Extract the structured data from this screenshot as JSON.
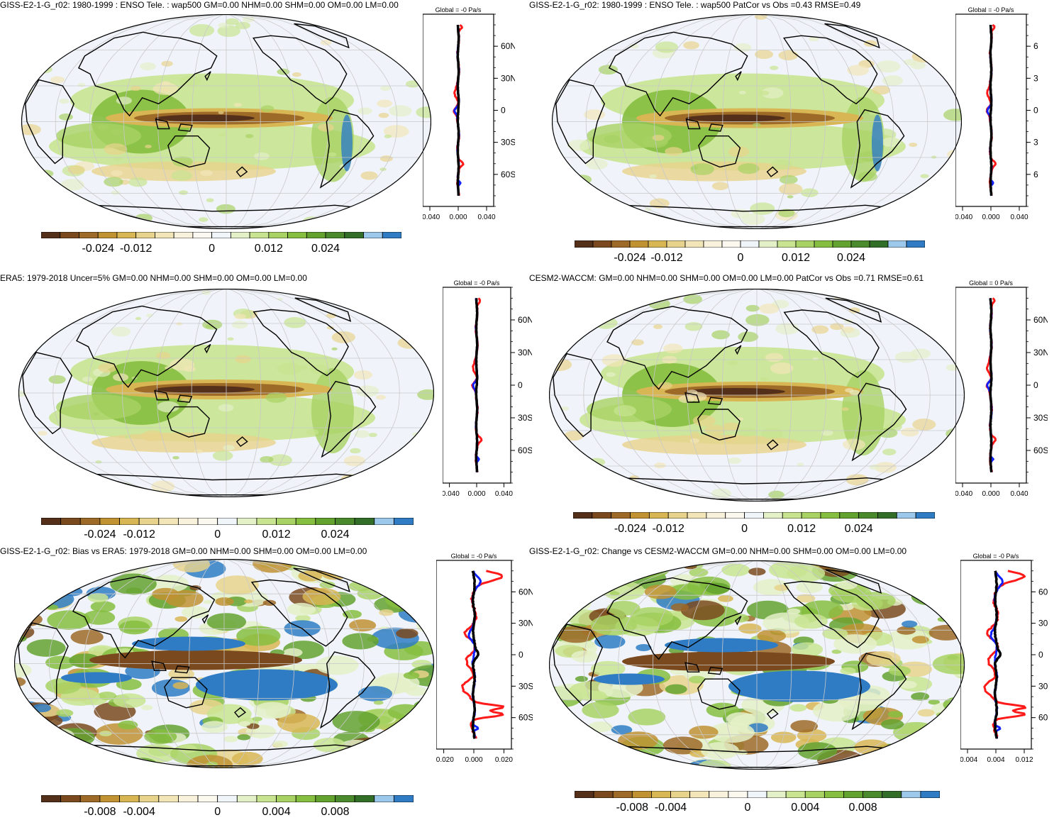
{
  "panels": [
    {
      "title": "GISS-E2-1-G_r02: 1980-1999 : ENSO Tele. : wap500 GM=0.00 NHM=0.00 SHM=0.00 OM=0.00 LM=0.00",
      "zonal_title": "Global = -0 Pa/s",
      "lat_labels": [
        "60N",
        "30N",
        "0",
        "30S",
        "60S"
      ],
      "zonal_ticks": [
        "-0.040",
        "0.000",
        "0.040"
      ],
      "colorbar_labels": [
        "-0.024",
        "-0.012",
        "0",
        "0.012",
        "0.024"
      ],
      "style": "model"
    },
    {
      "title": "GISS-E2-1-G_r02: 1980-1999 : ENSO Tele. : wap500 PatCor vs Obs =0.43 RMSE=0.49",
      "zonal_title": "Global = -0 Pa/s",
      "lat_labels": [
        "6",
        "3",
        "0",
        "3",
        "6"
      ],
      "zonal_ticks": [
        "-0.040",
        "0.000",
        "0.040"
      ],
      "colorbar_labels": [
        "-0.024",
        "-0.012",
        "0",
        "0.012",
        "0.024"
      ],
      "style": "model"
    },
    {
      "title": "ERA5: 1979-2018 Uncer=5% GM=0.00 NHM=0.00 SHM=0.00 OM=0.00 LM=0.00",
      "zonal_title": "Global = -0 Pa/s",
      "lat_labels": [
        "60N",
        "30N",
        "0",
        "30S",
        "60S"
      ],
      "zonal_ticks": [
        "-0.040",
        "0.000",
        "0.040"
      ],
      "colorbar_labels": [
        "-0.024",
        "-0.012",
        "0",
        "0.012",
        "0.024"
      ],
      "style": "obs"
    },
    {
      "title": "CESM2-WACCM: GM=0.00 NHM=0.00 SHM=0.00 OM=0.00 LM=0.00 PatCor vs Obs =0.71 RMSE=0.61",
      "zonal_title": "Global = 0 Pa/s",
      "lat_labels": [
        "60N",
        "30N",
        "0",
        "30S",
        "60S"
      ],
      "zonal_ticks": [
        "-0.040",
        "0.000",
        "0.040"
      ],
      "colorbar_labels": [
        "-0.024",
        "-0.012",
        "0",
        "0.012",
        "0.024"
      ],
      "style": "obs"
    },
    {
      "title": "GISS-E2-1-G_r02: Bias vs ERA5: 1979-2018 GM=0.00 NHM=0.00 SHM=0.00 OM=0.00 LM=0.00",
      "zonal_title": "Global = -0 Pa/s",
      "lat_labels": [
        "60N",
        "30N",
        "0",
        "30S",
        "60S"
      ],
      "zonal_ticks": [
        "-0.020",
        "0.000",
        "0.020"
      ],
      "colorbar_labels": [
        "-0.008",
        "-0.004",
        "0",
        "0.004",
        "0.008"
      ],
      "style": "bias"
    },
    {
      "title": "GISS-E2-1-G_r02: Change vs CESM2-WACCM GM=0.00 NHM=0.00 SHM=0.00 OM=0.00 LM=0.00",
      "zonal_title": "Global = -0 Pa/s",
      "lat_labels": [
        "60",
        "30",
        "0",
        "30",
        "60"
      ],
      "zonal_ticks": [
        "-0.004",
        "0.004",
        "0.012"
      ],
      "colorbar_labels": [
        "-0.008",
        "-0.004",
        "0",
        "0.004",
        "0.008"
      ],
      "style": "bias"
    }
  ],
  "colors": {
    "palette": [
      "#54301a",
      "#7a4a1e",
      "#9e6a28",
      "#c09232",
      "#d8b654",
      "#e8d38c",
      "#f2e6b8",
      "#f8f2dc",
      "#fbf8f0",
      "#f0f5fa",
      "#e4f0c8",
      "#c8e490",
      "#a8d264",
      "#86be40",
      "#64a230",
      "#4a8a2c",
      "#326e28",
      "#9cc8ec",
      "#2f7cc4"
    ],
    "ocean": "#f0f4fa",
    "coast": "#000000",
    "grid": "#c8c8c8",
    "red": "#ff1a1a",
    "blue": "#1020ff",
    "black": "#000000"
  }
}
